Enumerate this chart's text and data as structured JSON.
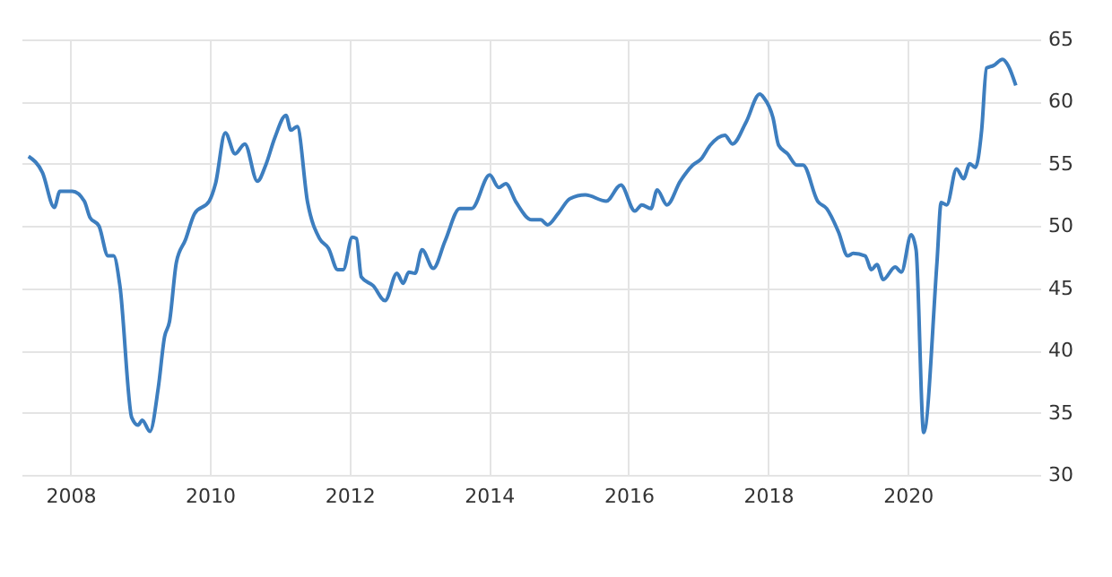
{
  "chart_data": {
    "type": "line",
    "x": [
      2007.4,
      2007.6,
      2007.77,
      2007.85,
      2008.03,
      2008.2,
      2008.28,
      2008.41,
      2008.54,
      2008.62,
      2008.71,
      2008.88,
      2008.97,
      2009.03,
      2009.14,
      2009.26,
      2009.35,
      2009.42,
      2009.52,
      2009.65,
      2009.78,
      2009.99,
      2010.08,
      2010.22,
      2010.36,
      2010.5,
      2010.68,
      2010.8,
      2010.93,
      2011.09,
      2011.16,
      2011.25,
      2011.4,
      2011.57,
      2011.7,
      2011.83,
      2011.91,
      2012.04,
      2012.1,
      2012.17,
      2012.34,
      2012.51,
      2012.68,
      2012.77,
      2012.85,
      2012.94,
      2013.04,
      2013.2,
      2013.37,
      2013.58,
      2013.75,
      2014.01,
      2014.14,
      2014.24,
      2014.39,
      2014.61,
      2014.74,
      2014.84,
      2014.99,
      2015.16,
      2015.38,
      2015.68,
      2015.89,
      2016.09,
      2016.19,
      2016.32,
      2016.41,
      2016.55,
      2016.74,
      2016.92,
      2017.04,
      2017.17,
      2017.38,
      2017.49,
      2017.68,
      2017.88,
      2017.94,
      2018.07,
      2018.15,
      2018.28,
      2018.41,
      2018.5,
      2018.71,
      2018.84,
      2019.01,
      2019.14,
      2019.22,
      2019.39,
      2019.48,
      2019.56,
      2019.65,
      2019.82,
      2019.91,
      2020.05,
      2020.12,
      2020.23,
      2020.42,
      2020.48,
      2020.56,
      2020.7,
      2020.8,
      2020.89,
      2020.97,
      2021.06,
      2021.13,
      2021.23,
      2021.36,
      2021.44,
      2021.55
    ],
    "series": [
      {
        "color": "#3d7ebf",
        "values": [
          55.6,
          54.3,
          51.5,
          52.8,
          52.8,
          52.0,
          50.7,
          50.0,
          47.6,
          47.6,
          45.2,
          34.6,
          34.0,
          34.4,
          33.5,
          37.0,
          41.1,
          42.3,
          47.1,
          48.9,
          51.0,
          52.0,
          53.4,
          57.5,
          55.8,
          56.6,
          53.6,
          54.9,
          57.1,
          58.9,
          57.7,
          58.0,
          51.9,
          49.0,
          48.2,
          46.5,
          46.5,
          49.1,
          49.0,
          45.9,
          45.2,
          44.0,
          46.2,
          45.4,
          46.3,
          46.2,
          48.1,
          46.6,
          48.8,
          51.4,
          51.4,
          54.1,
          53.1,
          53.4,
          51.9,
          50.5,
          50.5,
          50.1,
          51.0,
          52.2,
          52.5,
          52.0,
          53.3,
          51.2,
          51.7,
          51.4,
          52.9,
          51.7,
          53.6,
          54.9,
          55.4,
          56.5,
          57.3,
          56.6,
          58.3,
          60.6,
          60.3,
          58.7,
          56.5,
          55.8,
          54.9,
          54.9,
          52.0,
          51.4,
          49.5,
          47.6,
          47.8,
          47.6,
          46.5,
          46.9,
          45.7,
          46.7,
          46.3,
          49.3,
          48.1,
          33.4,
          47.1,
          51.9,
          51.7,
          54.6,
          53.8,
          55.0,
          54.7,
          57.7,
          62.7,
          62.9,
          63.4,
          62.9,
          61.3
        ]
      }
    ],
    "xlim": [
      2007.3,
      2021.9
    ],
    "xticks": [
      2008,
      2010,
      2012,
      2014,
      2016,
      2018,
      2020
    ],
    "ylim": [
      30,
      65
    ],
    "yticks": [
      30,
      35,
      40,
      45,
      50,
      55,
      60,
      65
    ],
    "grid": true,
    "line_style": "solid",
    "marker": "none",
    "legend": false
  }
}
